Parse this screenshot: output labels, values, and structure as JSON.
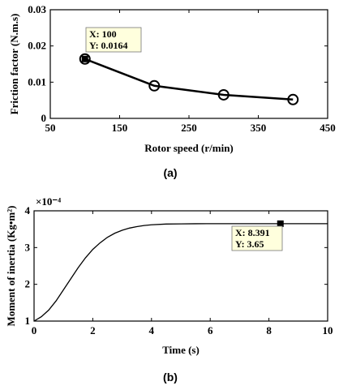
{
  "chart_data": [
    {
      "type": "line",
      "caption": "(a)",
      "xlabel": "Rotor speed (r/min)",
      "ylabel": "Friction factor (N.m.s)",
      "xlim": [
        50,
        450
      ],
      "ylim": [
        0,
        0.03
      ],
      "xticks": [
        "50",
        "150",
        "250",
        "350",
        "450"
      ],
      "yticks": [
        "0",
        "0.01",
        "0.02",
        "0.03"
      ],
      "grid": false,
      "marker": "circle",
      "series": [
        {
          "x": [
            100,
            200,
            300,
            400
          ],
          "y": [
            0.0164,
            0.009,
            0.0065,
            0.0052
          ]
        }
      ],
      "datatip": {
        "line1": "X: 100",
        "line2": "Y: 0.0164"
      }
    },
    {
      "type": "line",
      "caption": "(b)",
      "xlabel": "Time (s)",
      "ylabel": "Moment of inertia (Kg•m²)",
      "y_multiplier": "×10⁻⁴",
      "xlim": [
        0,
        10
      ],
      "ylim": [
        1,
        4
      ],
      "xticks": [
        "0",
        "2",
        "4",
        "6",
        "8",
        "10"
      ],
      "yticks": [
        "1",
        "2",
        "3",
        "4"
      ],
      "grid": false,
      "series": [
        {
          "x": [
            0,
            0.25,
            0.5,
            0.75,
            1.0,
            1.25,
            1.5,
            1.75,
            2.0,
            2.25,
            2.5,
            2.75,
            3.0,
            3.25,
            3.5,
            3.75,
            4.0,
            4.5,
            5.0,
            5.5,
            6.0,
            7.0,
            8.0,
            8.391,
            9.0,
            10.0
          ],
          "y": [
            1.0,
            1.12,
            1.3,
            1.55,
            1.85,
            2.15,
            2.45,
            2.72,
            2.95,
            3.13,
            3.28,
            3.39,
            3.47,
            3.53,
            3.57,
            3.6,
            3.62,
            3.64,
            3.645,
            3.648,
            3.65,
            3.65,
            3.65,
            3.65,
            3.65,
            3.65
          ]
        }
      ],
      "datatip": {
        "line1": "X: 8.391",
        "line2": "Y: 3.65"
      }
    }
  ]
}
